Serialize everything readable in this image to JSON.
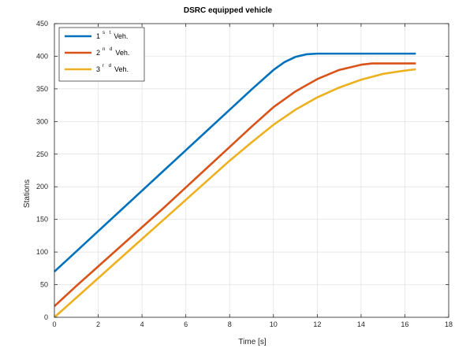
{
  "chart_data": {
    "type": "line",
    "title": "DSRC equipped vehicle",
    "xlabel": "Time [s]",
    "ylabel": "Stations",
    "xlim": [
      0,
      18
    ],
    "ylim": [
      0,
      450
    ],
    "xticks": [
      0,
      2,
      4,
      6,
      8,
      10,
      12,
      14,
      16,
      18
    ],
    "yticks": [
      0,
      50,
      100,
      150,
      200,
      250,
      300,
      350,
      400,
      450
    ],
    "grid": true,
    "legend_position": "top-left",
    "series": [
      {
        "name": "1st Veh.",
        "legend_number": "1",
        "legend_suffix": "s t",
        "legend_tail": "Veh.",
        "color": "#0072BD",
        "x": [
          0,
          1,
          2,
          3,
          4,
          5,
          6,
          7,
          8,
          9,
          10,
          10.5,
          11,
          11.5,
          12,
          13,
          14,
          15,
          16,
          16.5
        ],
        "y": [
          70,
          101,
          132,
          163,
          194,
          225,
          256,
          287,
          318,
          349,
          379,
          391,
          399,
          403,
          404,
          404,
          404,
          404,
          404,
          404
        ]
      },
      {
        "name": "2nd Veh.",
        "legend_number": "2",
        "legend_suffix": "n d",
        "legend_tail": "Veh.",
        "color": "#D95319",
        "x": [
          0,
          1,
          2,
          3,
          4,
          5,
          6,
          7,
          8,
          9,
          10,
          11,
          12,
          13,
          14,
          14.5,
          15,
          16,
          16.5
        ],
        "y": [
          17,
          48,
          78,
          108,
          138,
          168,
          199,
          230,
          261,
          292,
          322,
          346,
          365,
          379,
          387,
          389,
          389,
          389,
          389
        ]
      },
      {
        "name": "3rd Veh.",
        "legend_number": "3",
        "legend_suffix": "r d",
        "legend_tail": "Veh.",
        "color": "#EDB120",
        "x": [
          0,
          1,
          2,
          3,
          4,
          5,
          6,
          7,
          8,
          9,
          10,
          11,
          12,
          13,
          14,
          15,
          16,
          16.5
        ],
        "y": [
          0,
          30,
          60,
          90,
          120,
          150,
          180,
          210,
          240,
          268,
          295,
          318,
          337,
          352,
          364,
          373,
          378,
          380
        ]
      }
    ]
  }
}
